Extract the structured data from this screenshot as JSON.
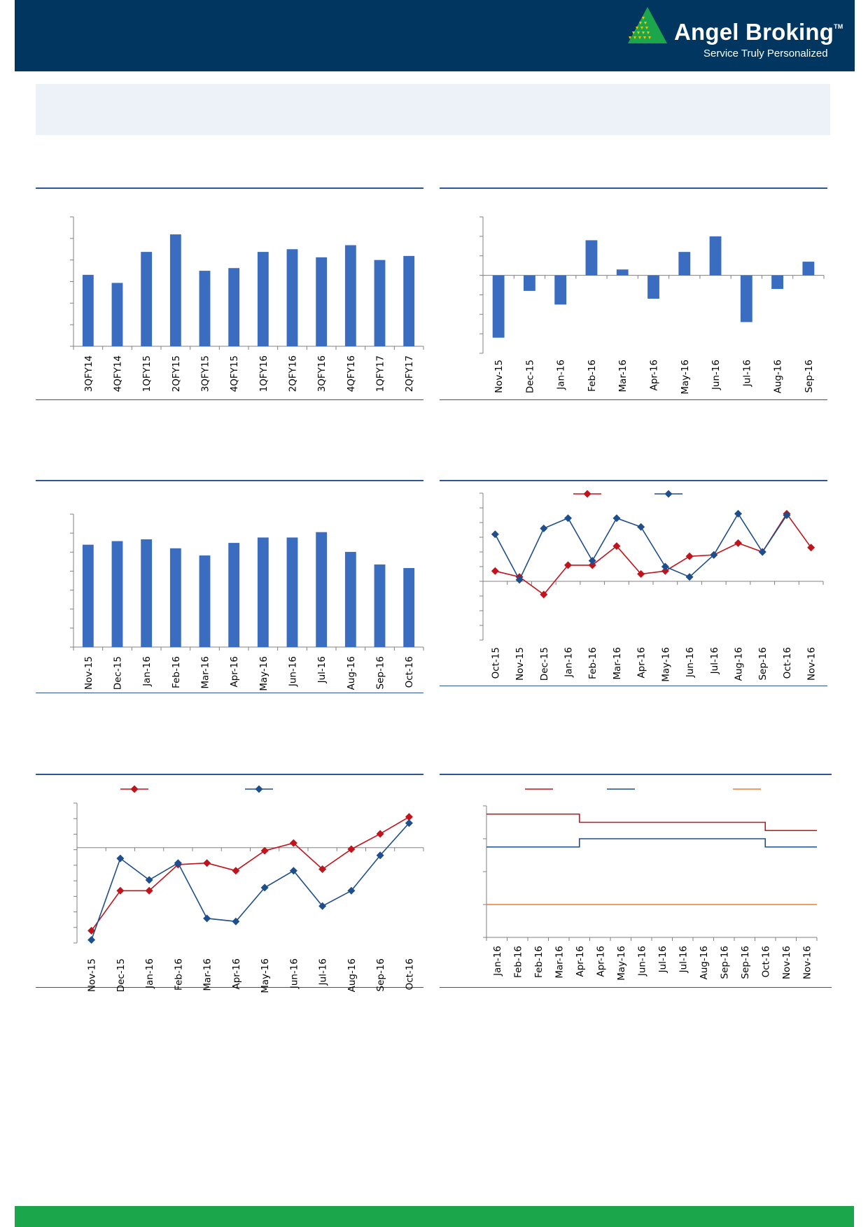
{
  "header": {
    "brand_name": "Angel Broking",
    "trademark": "TM",
    "tagline": "Service Truly Personalized",
    "colors": {
      "header_bg": "#003660",
      "logo_green": "#1ca64b",
      "logo_yellow": "#f5c400",
      "footer": "#1ca64b"
    }
  },
  "chart_data": [
    {
      "type": "bar",
      "categories": [
        "3QFY14",
        "4QFY14",
        "1QFY15",
        "2QFY15",
        "3QFY15",
        "4QFY15",
        "1QFY16",
        "2QFY16",
        "3QFY16",
        "4QFY16",
        "1QFY17",
        "2QFY17"
      ],
      "values": [
        5.3,
        4.7,
        7.0,
        8.3,
        5.6,
        5.8,
        7.0,
        7.2,
        6.6,
        7.5,
        6.4,
        6.7
      ],
      "ylim": [
        0,
        9.6
      ],
      "color": "#3a6dbf"
    },
    {
      "type": "bar",
      "categories": [
        "Nov-15",
        "Dec-15",
        "Jan-16",
        "Feb-16",
        "Mar-16",
        "Apr-16",
        "May-16",
        "Jun-16",
        "Jul-16",
        "Aug-16",
        "Sep-16"
      ],
      "values": [
        -3.2,
        -0.8,
        -1.5,
        1.8,
        0.3,
        -1.2,
        1.2,
        2.0,
        -2.4,
        -0.7,
        0.7
      ],
      "ylim": [
        -4,
        3
      ],
      "color": "#3a6dbf"
    },
    {
      "type": "bar",
      "categories": [
        "Nov-15",
        "Dec-15",
        "Jan-16",
        "Feb-16",
        "Mar-16",
        "Apr-16",
        "May-16",
        "Jun-16",
        "Jul-16",
        "Aug-16",
        "Sep-16",
        "Oct-16"
      ],
      "values": [
        5.7,
        5.9,
        6.0,
        5.5,
        5.1,
        5.8,
        6.1,
        6.1,
        6.4,
        5.3,
        4.6,
        4.4
      ],
      "ylim": [
        0,
        7.4
      ],
      "color": "#3a6dbf"
    },
    {
      "type": "line",
      "x": [
        "Oct-15",
        "Nov-15",
        "Dec-15",
        "Jan-16",
        "Feb-16",
        "Mar-16",
        "Apr-16",
        "May-16",
        "Jun-16",
        "Jul-16",
        "Aug-16",
        "Sep-16",
        "Oct-16",
        "Nov-16"
      ],
      "series": [
        {
          "values": [
            0.7,
            0.3,
            -0.9,
            1.1,
            1.1,
            2.4,
            0.5,
            0.7,
            1.7,
            1.8,
            2.6,
            2.0,
            4.6,
            2.3
          ],
          "color": "#c0141c"
        },
        {
          "values": [
            3.2,
            0.1,
            3.6,
            4.3,
            1.4,
            4.3,
            3.7,
            1.0,
            0.3,
            1.8,
            4.6,
            2.0,
            4.5,
            null
          ],
          "color": "#1f4e8c"
        }
      ],
      "ylim": [
        -4,
        6
      ]
    },
    {
      "type": "line",
      "x": [
        "Nov-15",
        "Dec-15",
        "Jan-16",
        "Feb-16",
        "Mar-16",
        "Apr-16",
        "May-16",
        "Jun-16",
        "Jul-16",
        "Aug-16",
        "Sep-16",
        "Oct-16"
      ],
      "series": [
        {
          "values": [
            -5.4,
            -2.8,
            -2.8,
            -1.1,
            -1.0,
            -1.5,
            -0.2,
            0.3,
            -1.4,
            -0.1,
            0.9,
            2.0
          ],
          "color": "#c0141c"
        },
        {
          "values": [
            -6.0,
            -0.7,
            -2.1,
            -1.0,
            -4.6,
            -4.8,
            -2.6,
            -1.5,
            -3.8,
            -2.8,
            -0.5,
            1.6
          ],
          "color": "#1f4e8c"
        }
      ],
      "ylim": [
        -6.2,
        2.9
      ]
    },
    {
      "type": "line",
      "x": [
        "Jan-16",
        "Feb-16",
        "Feb-16",
        "Mar-16",
        "Apr-16",
        "Apr-16",
        "May-16",
        "Jun-16",
        "Jul-16",
        "Jul-16",
        "Aug-16",
        "Sep-16",
        "Sep-16",
        "Oct-16",
        "Nov-16",
        "Nov-16"
      ],
      "step_changes": [
        "Apr-16",
        "Oct-16"
      ],
      "series": [
        {
          "segments": [
            [
              "Jan-16",
              "Apr-16",
              6.75
            ],
            [
              "Apr-16",
              "Oct-16",
              6.5
            ],
            [
              "Oct-16",
              "Nov-16",
              6.25
            ]
          ],
          "color": "#c0141c"
        },
        {
          "segments": [
            [
              "Jan-16",
              "Apr-16",
              5.75
            ],
            [
              "Apr-16",
              "Oct-16",
              6.0
            ],
            [
              "Oct-16",
              "Nov-16",
              5.75
            ]
          ],
          "color": "#1f4e8c"
        },
        {
          "segments": [
            [
              "Jan-16",
              "Nov-16",
              4.0
            ]
          ],
          "color": "#ed7d31"
        }
      ],
      "ylim": [
        3,
        7
      ]
    }
  ]
}
